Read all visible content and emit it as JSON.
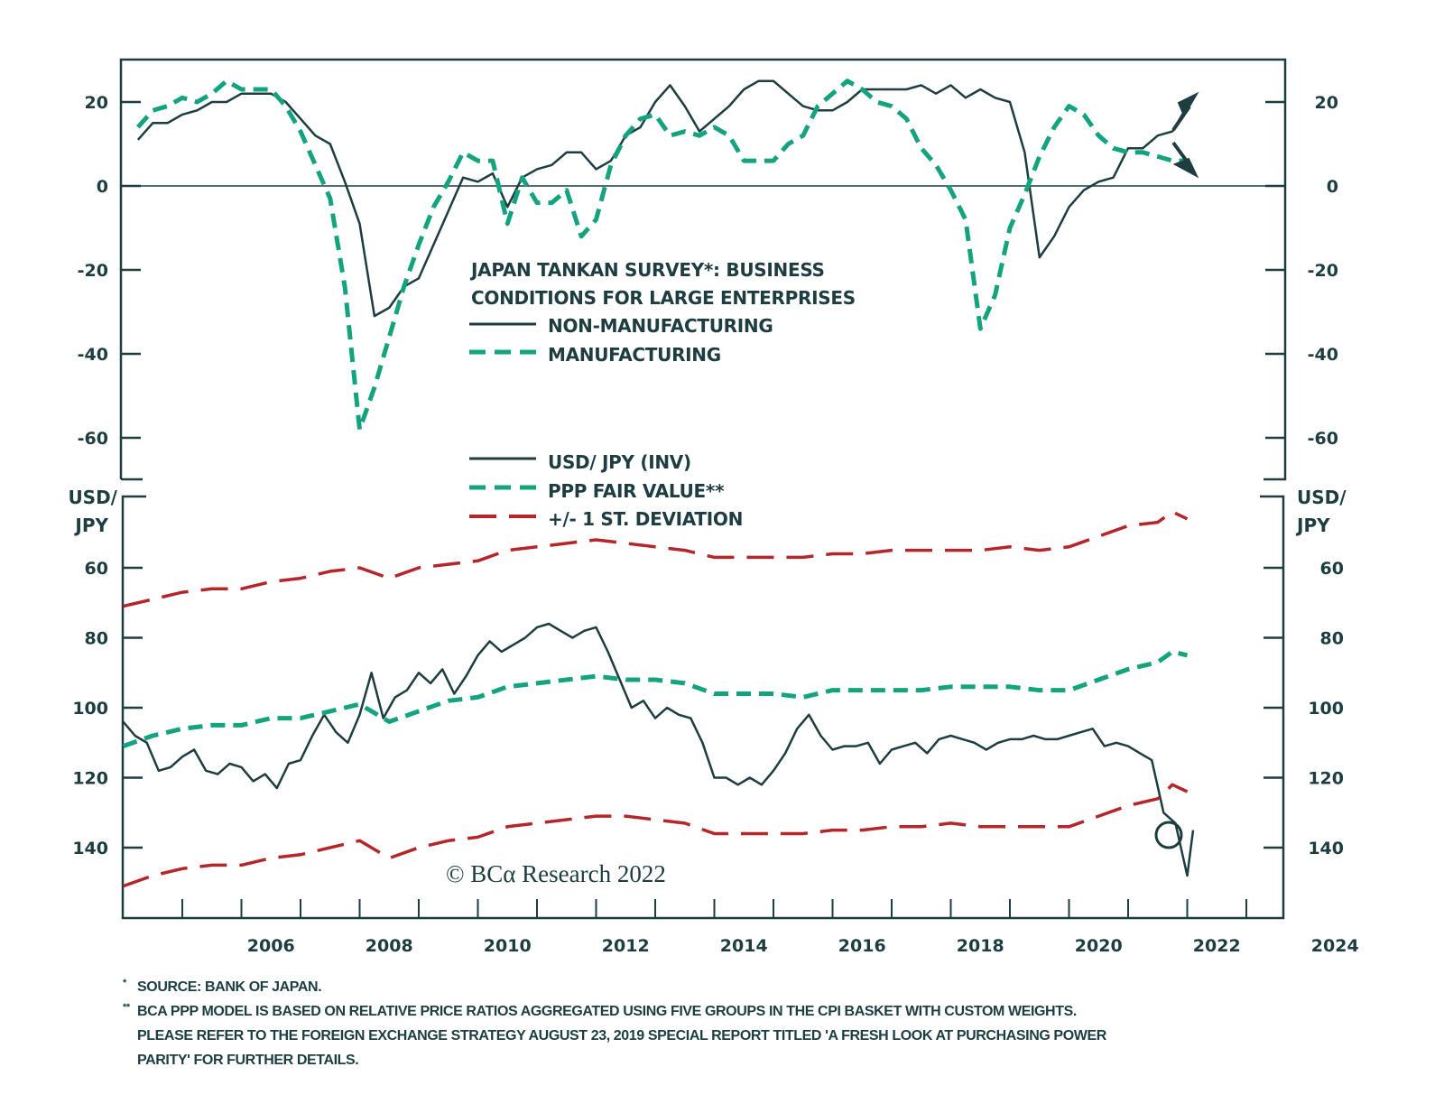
{
  "chart_data": [
    {
      "type": "line",
      "panel": "top",
      "title": "JAPAN TANKAN SURVEY*: BUSINESS CONDITIONS FOR LARGE ENTERPRISES",
      "title_lines": [
        "JAPAN TANKAN SURVEY*: BUSINESS",
        "CONDITIONS FOR LARGE ENTERPRISES"
      ],
      "xlabel": "",
      "ylabel": "",
      "ylim": [
        -70,
        30
      ],
      "yticks": [
        20,
        0,
        -20,
        -40,
        -60
      ],
      "ytick_labels": [
        "20",
        "0",
        "-20",
        "-40",
        "-60"
      ],
      "zero_line": true,
      "grid": false,
      "annotations": [
        "arrow-up-right at 2022.3 (~22)",
        "arrow-down-right at 2022.3 (~4)"
      ],
      "series": [
        {
          "name": "NON-MANUFACTURING",
          "style": "solid",
          "color": "#1d3d40",
          "x": [
            2004.25,
            2004.5,
            2004.75,
            2005.0,
            2005.25,
            2005.5,
            2005.75,
            2006.0,
            2006.25,
            2006.5,
            2006.75,
            2007.0,
            2007.25,
            2007.5,
            2007.75,
            2008.0,
            2008.25,
            2008.5,
            2008.75,
            2009.0,
            2009.25,
            2009.5,
            2009.75,
            2010.0,
            2010.25,
            2010.5,
            2010.75,
            2011.0,
            2011.25,
            2011.5,
            2011.75,
            2012.0,
            2012.25,
            2012.5,
            2012.75,
            2013.0,
            2013.25,
            2013.5,
            2013.75,
            2014.0,
            2014.25,
            2014.5,
            2014.75,
            2015.0,
            2015.25,
            2015.5,
            2015.75,
            2016.0,
            2016.25,
            2016.5,
            2016.75,
            2017.0,
            2017.25,
            2017.5,
            2017.75,
            2018.0,
            2018.25,
            2018.5,
            2018.75,
            2019.0,
            2019.25,
            2019.5,
            2019.75,
            2020.0,
            2020.25,
            2020.5,
            2020.75,
            2021.0,
            2021.25,
            2021.5,
            2021.75,
            2022.0
          ],
          "values": [
            11,
            15,
            15,
            17,
            18,
            20,
            20,
            22,
            22,
            22,
            20,
            16,
            12,
            10,
            1,
            -9,
            -31,
            -29,
            -24,
            -22,
            -14,
            -6,
            2,
            1,
            3,
            -5,
            2,
            4,
            5,
            8,
            8,
            4,
            6,
            12,
            14,
            20,
            24,
            19,
            13,
            16,
            19,
            23,
            25,
            25,
            22,
            19,
            18,
            18,
            20,
            23,
            23,
            23,
            23,
            24,
            22,
            24,
            21,
            23,
            21,
            20,
            8,
            -17,
            -12,
            -5,
            -1,
            1,
            2,
            9,
            9,
            12,
            13,
            19
          ]
        },
        {
          "name": "MANUFACTURING",
          "style": "dashed",
          "color": "#14a37f",
          "x": [
            2004.25,
            2004.5,
            2004.75,
            2005.0,
            2005.25,
            2005.5,
            2005.75,
            2006.0,
            2006.25,
            2006.5,
            2006.75,
            2007.0,
            2007.25,
            2007.5,
            2007.75,
            2008.0,
            2008.25,
            2008.5,
            2008.75,
            2009.0,
            2009.25,
            2009.5,
            2009.75,
            2010.0,
            2010.25,
            2010.5,
            2010.75,
            2011.0,
            2011.25,
            2011.5,
            2011.75,
            2012.0,
            2012.25,
            2012.5,
            2012.75,
            2013.0,
            2013.25,
            2013.5,
            2013.75,
            2014.0,
            2014.25,
            2014.5,
            2014.75,
            2015.0,
            2015.25,
            2015.5,
            2015.75,
            2016.0,
            2016.25,
            2016.5,
            2016.75,
            2017.0,
            2017.25,
            2017.5,
            2017.75,
            2018.0,
            2018.25,
            2018.5,
            2018.75,
            2019.0,
            2019.25,
            2019.5,
            2019.75,
            2020.0,
            2020.25,
            2020.5,
            2020.75,
            2021.0,
            2021.25,
            2021.5,
            2021.75,
            2022.0
          ],
          "values": [
            14,
            18,
            19,
            21,
            20,
            22,
            25,
            23,
            23,
            23,
            19,
            13,
            5,
            -3,
            -24,
            -58,
            -48,
            -36,
            -24,
            -14,
            -5,
            1,
            8,
            6,
            6,
            -9,
            2,
            -4,
            -4,
            -1,
            -12,
            -8,
            5,
            12,
            16,
            17,
            12,
            13,
            12,
            14,
            12,
            6,
            6,
            6,
            10,
            12,
            19,
            22,
            25,
            23,
            20,
            19,
            16,
            9,
            5,
            -1,
            -8,
            -34,
            -26,
            -10,
            -2,
            7,
            14,
            19,
            17,
            12,
            9,
            8,
            8,
            7,
            6,
            6
          ]
        }
      ]
    },
    {
      "type": "line",
      "panel": "bottom",
      "ylabel": "USD/JPY",
      "xlabel": "",
      "ylim": [
        45,
        160
      ],
      "y_inverted": true,
      "yticks": [
        60,
        80,
        100,
        120,
        140
      ],
      "ytick_labels": [
        "60",
        "80",
        "100",
        "120",
        "140"
      ],
      "grid": false,
      "annotations": [
        "circle around 2022 USD/JPY ~135"
      ],
      "series": [
        {
          "name": "USD/ JPY (INV)",
          "style": "solid",
          "color": "#1d3d40",
          "x": [
            2004.0,
            2004.2,
            2004.4,
            2004.6,
            2004.8,
            2005.0,
            2005.2,
            2005.4,
            2005.6,
            2005.8,
            2006.0,
            2006.2,
            2006.4,
            2006.6,
            2006.8,
            2007.0,
            2007.2,
            2007.4,
            2007.6,
            2007.8,
            2008.0,
            2008.2,
            2008.4,
            2008.6,
            2008.8,
            2009.0,
            2009.2,
            2009.4,
            2009.6,
            2009.8,
            2010.0,
            2010.2,
            2010.4,
            2010.6,
            2010.8,
            2011.0,
            2011.2,
            2011.4,
            2011.6,
            2011.8,
            2012.0,
            2012.2,
            2012.4,
            2012.6,
            2012.8,
            2013.0,
            2013.2,
            2013.4,
            2013.6,
            2013.8,
            2014.0,
            2014.2,
            2014.4,
            2014.6,
            2014.8,
            2015.0,
            2015.2,
            2015.4,
            2015.6,
            2015.8,
            2016.0,
            2016.2,
            2016.4,
            2016.6,
            2016.8,
            2017.0,
            2017.2,
            2017.4,
            2017.6,
            2017.8,
            2018.0,
            2018.2,
            2018.4,
            2018.6,
            2018.8,
            2019.0,
            2019.2,
            2019.4,
            2019.6,
            2019.8,
            2020.0,
            2020.2,
            2020.4,
            2020.6,
            2020.8,
            2021.0,
            2021.2,
            2021.4,
            2021.6,
            2021.8,
            2022.0,
            2022.1
          ],
          "values": [
            104,
            108,
            110,
            118,
            117,
            114,
            112,
            118,
            119,
            116,
            117,
            121,
            119,
            123,
            116,
            115,
            108,
            102,
            107,
            110,
            102,
            90,
            103,
            97,
            95,
            90,
            93,
            89,
            96,
            91,
            85,
            81,
            84,
            82,
            80,
            77,
            76,
            78,
            80,
            78,
            77,
            84,
            92,
            100,
            98,
            103,
            100,
            102,
            103,
            110,
            120,
            120,
            122,
            120,
            122,
            118,
            113,
            106,
            102,
            108,
            112,
            111,
            111,
            110,
            116,
            112,
            111,
            110,
            113,
            109,
            108,
            109,
            110,
            112,
            110,
            109,
            109,
            108,
            109,
            109,
            108,
            107,
            106,
            111,
            110,
            111,
            113,
            115,
            130,
            133,
            148,
            135
          ],
          "current_value_label": "",
          "last_point_highlighted": true
        },
        {
          "name": "PPP FAIR VALUE**",
          "style": "dashed",
          "color": "#14a37f",
          "x": [
            2004.0,
            2004.5,
            2005.0,
            2005.5,
            2006.0,
            2006.5,
            2007.0,
            2007.5,
            2008.0,
            2008.5,
            2009.0,
            2009.5,
            2010.0,
            2010.5,
            2011.0,
            2011.5,
            2012.0,
            2012.5,
            2013.0,
            2013.5,
            2014.0,
            2014.5,
            2015.0,
            2015.5,
            2016.0,
            2016.5,
            2017.0,
            2017.5,
            2018.0,
            2018.5,
            2019.0,
            2019.5,
            2020.0,
            2020.5,
            2021.0,
            2021.5,
            2021.75,
            2022.0
          ],
          "values": [
            111,
            108,
            106,
            105,
            105,
            103,
            103,
            101,
            99,
            104,
            101,
            98,
            97,
            94,
            93,
            92,
            91,
            92,
            92,
            93,
            96,
            96,
            96,
            97,
            95,
            95,
            95,
            95,
            94,
            94,
            94,
            95,
            95,
            92,
            89,
            87,
            84,
            85
          ]
        },
        {
          "name": "+/- 1 ST. DEVIATION (upper)",
          "style": "long-dashed",
          "color": "#b5262a",
          "x": [
            2004.0,
            2004.5,
            2005.0,
            2005.5,
            2006.0,
            2006.5,
            2007.0,
            2007.5,
            2008.0,
            2008.5,
            2009.0,
            2009.5,
            2010.0,
            2010.5,
            2011.0,
            2011.5,
            2012.0,
            2012.5,
            2013.0,
            2013.5,
            2014.0,
            2014.5,
            2015.0,
            2015.5,
            2016.0,
            2016.5,
            2017.0,
            2017.5,
            2018.0,
            2018.5,
            2019.0,
            2019.5,
            2020.0,
            2020.5,
            2021.0,
            2021.5,
            2021.75,
            2022.0
          ],
          "values": [
            71,
            69,
            67,
            66,
            66,
            64,
            63,
            61,
            60,
            63,
            60,
            59,
            58,
            55,
            54,
            53,
            52,
            53,
            54,
            55,
            57,
            57,
            57,
            57,
            56,
            56,
            55,
            55,
            55,
            55,
            54,
            55,
            54,
            51,
            48,
            47,
            44,
            46
          ]
        },
        {
          "name": "+/- 1 ST. DEVIATION (lower)",
          "style": "long-dashed",
          "color": "#b5262a",
          "x": [
            2004.0,
            2004.5,
            2005.0,
            2005.5,
            2006.0,
            2006.5,
            2007.0,
            2007.5,
            2008.0,
            2008.5,
            2009.0,
            2009.5,
            2010.0,
            2010.5,
            2011.0,
            2011.5,
            2012.0,
            2012.5,
            2013.0,
            2013.5,
            2014.0,
            2014.5,
            2015.0,
            2015.5,
            2016.0,
            2016.5,
            2017.0,
            2017.5,
            2018.0,
            2018.5,
            2019.0,
            2019.5,
            2020.0,
            2020.5,
            2021.0,
            2021.5,
            2021.75,
            2022.0
          ],
          "values": [
            151,
            148,
            146,
            145,
            145,
            143,
            142,
            140,
            138,
            143,
            140,
            138,
            137,
            134,
            133,
            132,
            131,
            131,
            132,
            133,
            136,
            136,
            136,
            136,
            135,
            135,
            134,
            134,
            133,
            134,
            134,
            134,
            134,
            131,
            128,
            126,
            122,
            124
          ]
        }
      ]
    }
  ],
  "xaxis": {
    "range": [
      2004.0,
      2023.6
    ],
    "tick_labels": [
      "2006",
      "2008",
      "2010",
      "2012",
      "2014",
      "2016",
      "2018",
      "2020",
      "2022",
      "2024"
    ],
    "minor_ticks_every_years": 1
  },
  "legend_top": {
    "title_line1": "JAPAN TANKAN SURVEY*: BUSINESS",
    "title_line2": "CONDITIONS FOR LARGE ENTERPRISES",
    "items": [
      {
        "label": "NON-MANUFACTURING"
      },
      {
        "label": "MANUFACTURING"
      }
    ]
  },
  "legend_bottom": {
    "items": [
      {
        "label": "USD/ JPY (INV)"
      },
      {
        "label": "PPP FAIR VALUE**"
      },
      {
        "label": "+/- 1 ST. DEVIATION"
      }
    ]
  },
  "unit_label": {
    "line1": "USD/",
    "line2": "JPY"
  },
  "watermark": "© BCα Research 2022",
  "colors": {
    "ink": "#1d3d40",
    "green": "#14a37f",
    "red": "#b5262a"
  },
  "footnotes": [
    {
      "mark": "*",
      "text": "SOURCE: BANK OF JAPAN."
    },
    {
      "mark": "**",
      "text": "BCA PPP MODEL IS BASED ON RELATIVE PRICE RATIOS AGGREGATED USING FIVE GROUPS IN THE CPI BASKET WITH CUSTOM WEIGHTS. PLEASE REFER TO THE FOREIGN EXCHANGE STRATEGY AUGUST 23, 2019 SPECIAL REPORT TITLED 'A FRESH LOOK AT PURCHASING POWER PARITY' FOR FURTHER DETAILS."
    }
  ]
}
